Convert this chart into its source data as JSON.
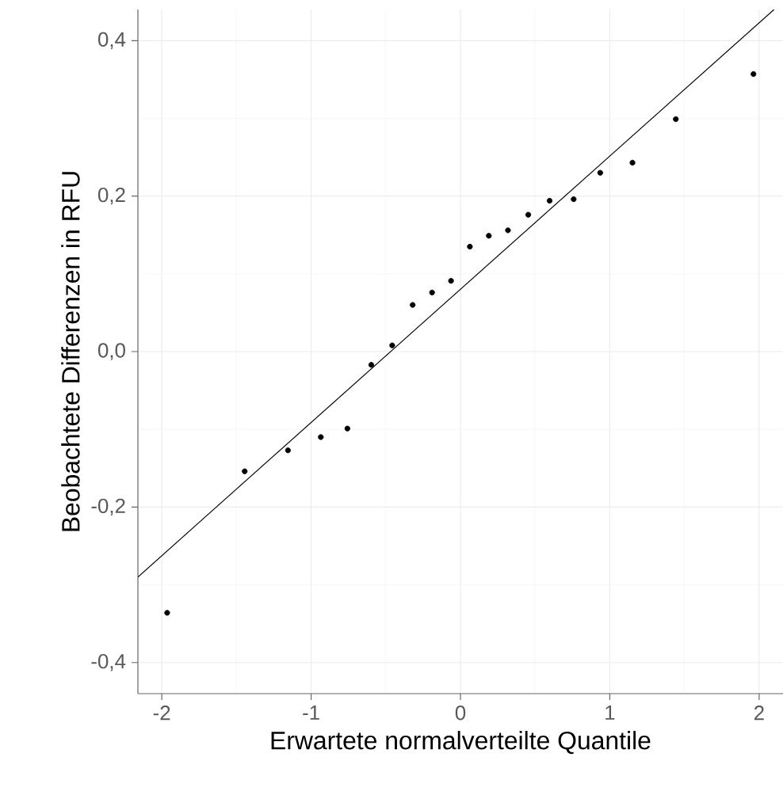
{
  "chart_data": {
    "type": "scatter",
    "xlabel": "Erwartete normalverteilte Quantile",
    "ylabel": "Beobachtete Differenzen in RFU",
    "xlim": [
      -2.16,
      2.16
    ],
    "ylim": [
      -0.44,
      0.44
    ],
    "xticks": [
      -2,
      -1,
      0,
      1,
      2
    ],
    "yticks": [
      {
        "value": -0.4,
        "label": "-0,4"
      },
      {
        "value": -0.2,
        "label": "-0,2"
      },
      {
        "value": 0,
        "label": "0,0"
      },
      {
        "value": 0.2,
        "label": "0,2"
      },
      {
        "value": 0.4,
        "label": "0,4"
      }
    ],
    "grid": true,
    "series": [
      {
        "color": "#000000",
        "marker": "circle",
        "x": [
          -1.964,
          -1.445,
          -1.155,
          -0.935,
          -0.757,
          -0.597,
          -0.457,
          -0.32,
          -0.19,
          -0.063,
          0.063,
          0.19,
          0.318,
          0.454,
          0.597,
          0.758,
          0.936,
          1.152,
          1.442,
          1.962
        ],
        "values": [
          -0.336,
          -0.154,
          -0.127,
          -0.11,
          -0.099,
          -0.017,
          0.008,
          0.06,
          0.076,
          0.091,
          0.135,
          0.149,
          0.156,
          0.176,
          0.194,
          0.196,
          0.23,
          0.243,
          0.299,
          0.357
        ]
      },
      {
        "type": "line",
        "marker": "none",
        "color": "#000000",
        "x": [
          -2.16,
          2.1
        ],
        "values": [
          -0.29,
          0.44
        ]
      }
    ]
  }
}
